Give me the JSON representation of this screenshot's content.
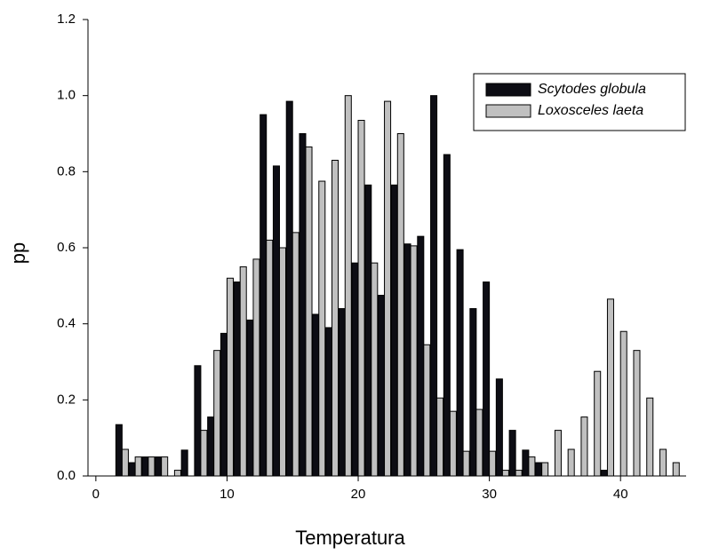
{
  "chart_data": {
    "type": "bar",
    "x_label": "Temperatura",
    "y_label": "pp",
    "x": [
      2,
      3,
      4,
      5,
      6,
      7,
      8,
      9,
      10,
      11,
      12,
      13,
      14,
      15,
      16,
      17,
      18,
      19,
      20,
      21,
      22,
      23,
      24,
      25,
      26,
      27,
      28,
      29,
      30,
      31,
      32,
      33,
      34,
      35,
      36,
      37,
      38,
      39,
      40,
      41,
      42,
      43,
      44
    ],
    "series": [
      {
        "name": "Scytodes globula",
        "color": "#0d0d14",
        "values": [
          0.135,
          0.035,
          0.05,
          0.05,
          0,
          0.068,
          0.29,
          0.155,
          0.375,
          0.51,
          0.41,
          0.95,
          0.815,
          0.985,
          0.9,
          0.425,
          0.39,
          0.44,
          0.56,
          0.765,
          0.475,
          0.765,
          0.61,
          0.63,
          1.0,
          0.845,
          0.595,
          0.44,
          0.51,
          0.255,
          0.12,
          0.068,
          0.035,
          0,
          0,
          0,
          0,
          0.015,
          0,
          0,
          0,
          0,
          0
        ]
      },
      {
        "name": "Loxosceles laeta",
        "color": "#c0c0c0",
        "values": [
          0.07,
          0.05,
          0.05,
          0.05,
          0.015,
          0,
          0.12,
          0.33,
          0.52,
          0.55,
          0.57,
          0.62,
          0.6,
          0.64,
          0.865,
          0.775,
          0.83,
          1.0,
          0.935,
          0.56,
          0.985,
          0.9,
          0.605,
          0.345,
          0.205,
          0.17,
          0.065,
          0.175,
          0.065,
          0.015,
          0.015,
          0.05,
          0.035,
          0.12,
          0.07,
          0.155,
          0.275,
          0.465,
          0.38,
          0.33,
          0.205,
          0.07,
          0.035
        ]
      }
    ],
    "xlim": [
      -0.6,
      45
    ],
    "xticks": [
      0,
      10,
      20,
      30,
      40
    ],
    "ylim": [
      0,
      1.2
    ],
    "yticks": [
      {
        "value": 0,
        "label": "0.0"
      },
      {
        "value": 0.2,
        "label": "0.2"
      },
      {
        "value": 0.4,
        "label": "0.4"
      },
      {
        "value": 0.6,
        "label": "0.6"
      },
      {
        "value": 0.8,
        "label": "0.8"
      },
      {
        "value": 1.0,
        "label": "1.0"
      },
      {
        "value": 1.2,
        "label": "1.2"
      }
    ],
    "legend": "upper-right"
  }
}
